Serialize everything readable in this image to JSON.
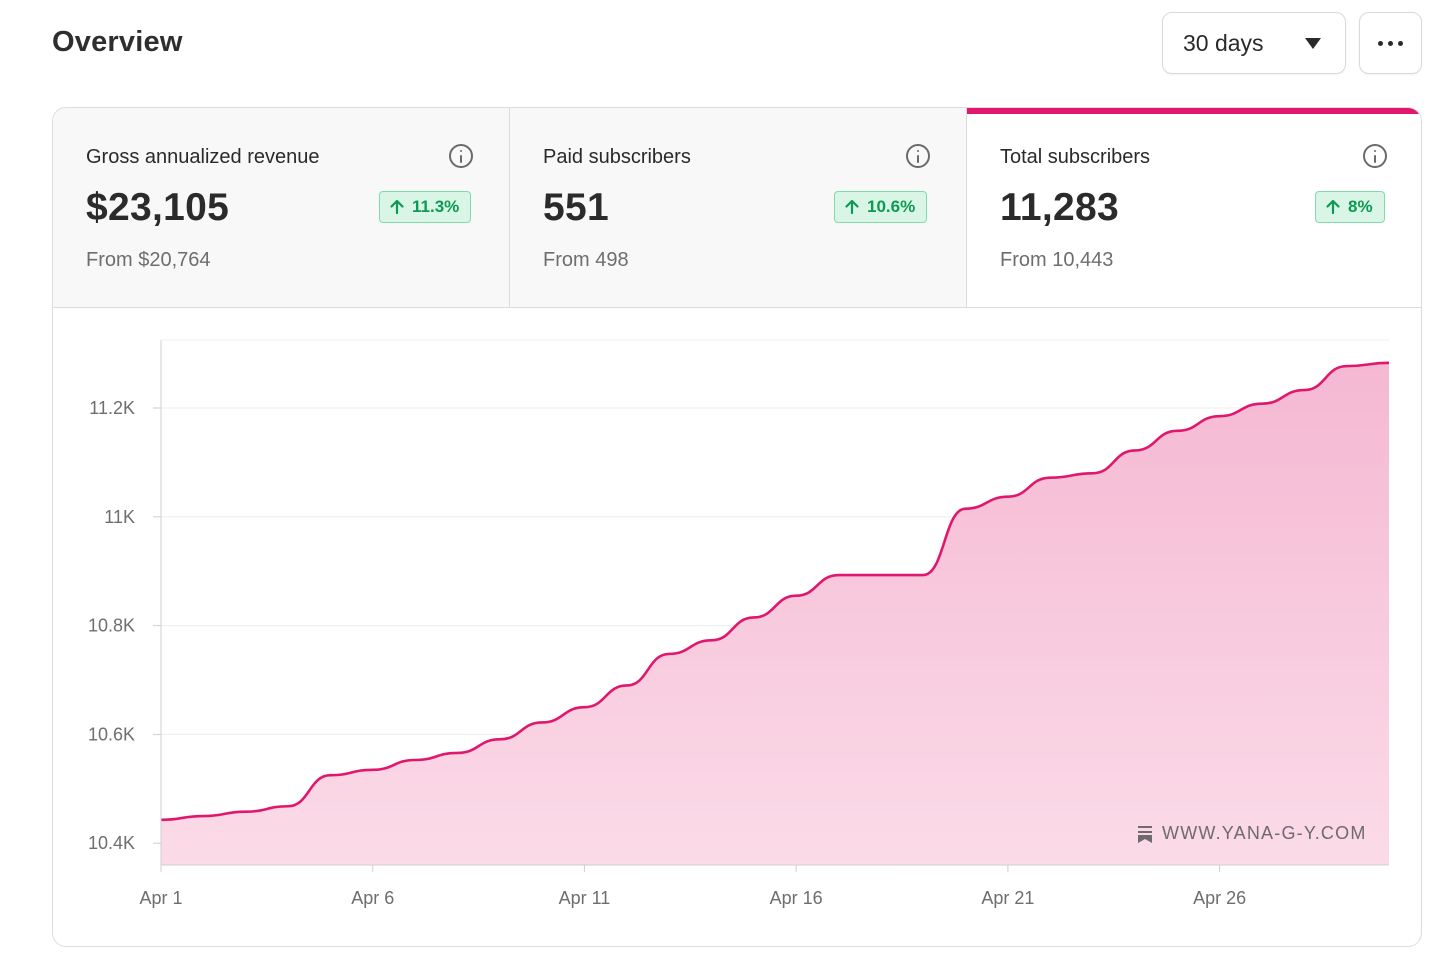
{
  "header": {
    "title": "Overview",
    "range_label": "30 days",
    "more_icon": "more-horizontal-icon"
  },
  "stats": [
    {
      "label": "Gross annualized revenue",
      "value": "$23,105",
      "change": "11.3%",
      "from": "From $20,764",
      "active": false
    },
    {
      "label": "Paid subscribers",
      "value": "551",
      "change": "10.6%",
      "from": "From 498",
      "active": false
    },
    {
      "label": "Total subscribers",
      "value": "11,283",
      "change": "8%",
      "from": "From 10,443",
      "active": true
    }
  ],
  "colors": {
    "accent": "#e0176d",
    "area_fill": "#f8c9dc",
    "badge_bg": "#d8f5e6",
    "badge_text": "#0e9a52"
  },
  "watermark": "WWW.YANA-G-Y.COM",
  "chart_data": {
    "type": "area",
    "x": [
      "Apr 1",
      "Apr 2",
      "Apr 3",
      "Apr 4",
      "Apr 5",
      "Apr 6",
      "Apr 7",
      "Apr 8",
      "Apr 9",
      "Apr 10",
      "Apr 11",
      "Apr 12",
      "Apr 13",
      "Apr 14",
      "Apr 15",
      "Apr 16",
      "Apr 17",
      "Apr 18",
      "Apr 19",
      "Apr 20",
      "Apr 21",
      "Apr 22",
      "Apr 23",
      "Apr 24",
      "Apr 25",
      "Apr 26",
      "Apr 27",
      "Apr 28",
      "Apr 29",
      "Apr 30"
    ],
    "series": [
      {
        "values": [
          10443,
          10450,
          10458,
          10468,
          10525,
          10535,
          10553,
          10566,
          10591,
          10622,
          10650,
          10690,
          10748,
          10773,
          10815,
          10855,
          10893,
          10893,
          10893,
          11015,
          11037,
          11072,
          11080,
          11122,
          11158,
          11185,
          11208,
          11233,
          11277,
          11283
        ]
      }
    ],
    "x_tick_labels": [
      "Apr 1",
      "Apr 6",
      "Apr 11",
      "Apr 16",
      "Apr 21",
      "Apr 26"
    ],
    "y_tick_labels": [
      "10.4K",
      "10.6K",
      "10.8K",
      "11K",
      "11.2K"
    ],
    "y_ticks": [
      10400,
      10600,
      10800,
      11000,
      11200
    ],
    "ylim": [
      10360,
      11325
    ],
    "grid": true
  }
}
